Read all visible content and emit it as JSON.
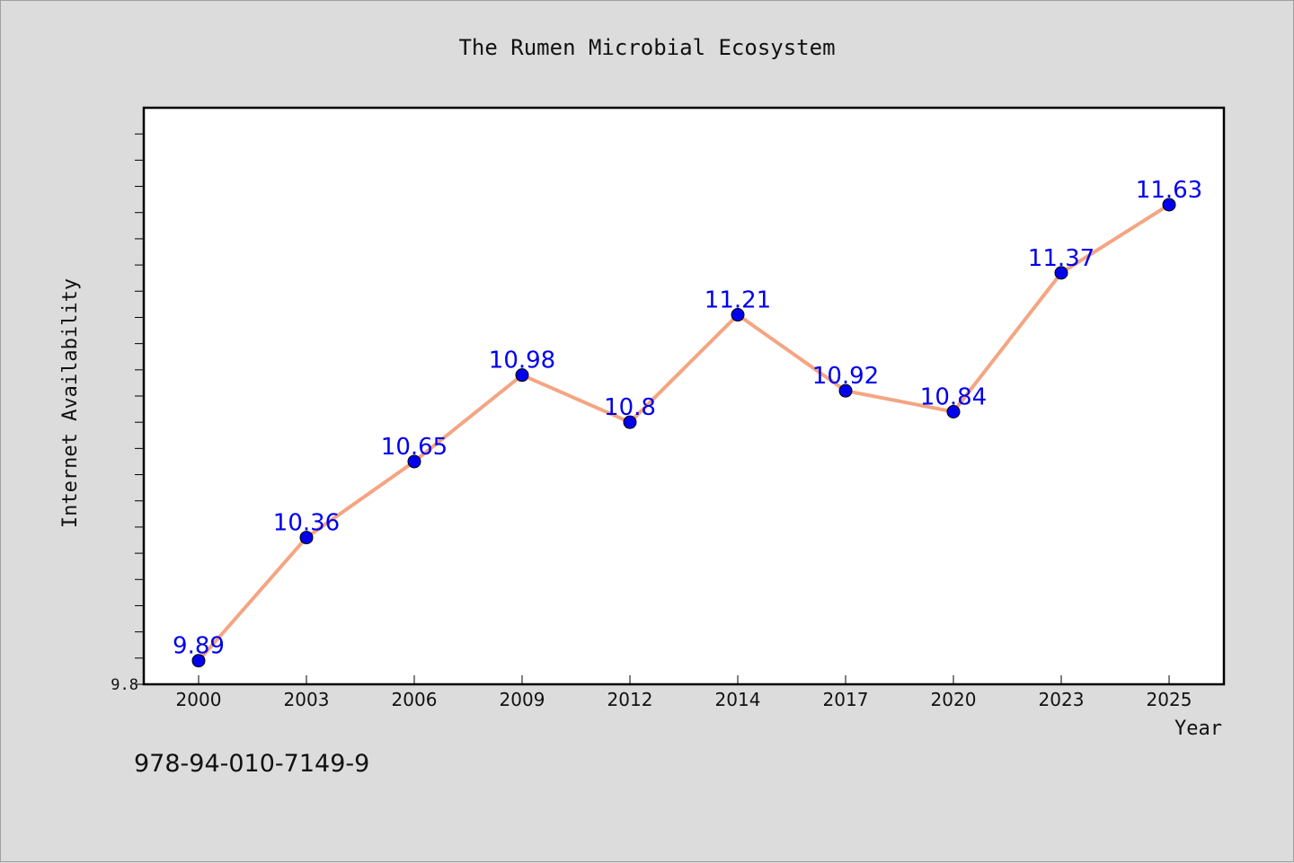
{
  "chart_data": {
    "type": "line",
    "title": "The Rumen Microbial Ecosystem",
    "xlabel": "Year",
    "ylabel": "Internet Availability",
    "categories": [
      "2000",
      "2003",
      "2006",
      "2009",
      "2012",
      "2014",
      "2017",
      "2020",
      "2023",
      "2025"
    ],
    "series": [
      {
        "values": [
          9.89,
          10.36,
          10.65,
          10.98,
          10.8,
          11.21,
          10.92,
          10.84,
          11.37,
          11.63
        ]
      }
    ],
    "data_labels": [
      "9.89",
      "10.36",
      "10.65",
      "10.98",
      "10.8",
      "11.21",
      "10.92",
      "10.84",
      "11.37",
      "11.63"
    ],
    "y_tick_labels": [
      "9.8"
    ],
    "ylim": [
      9.8,
      12.0
    ],
    "y_minor_tick_step": 0.1,
    "grid": false,
    "legend": "none",
    "colors": {
      "line": "#f4a582",
      "marker": "#0000ee",
      "data_label": "#0000ee",
      "plot_background": "#ffffff",
      "page_background": "#dcdcdc"
    }
  },
  "footer": {
    "code": "978-94-010-7149-9"
  }
}
